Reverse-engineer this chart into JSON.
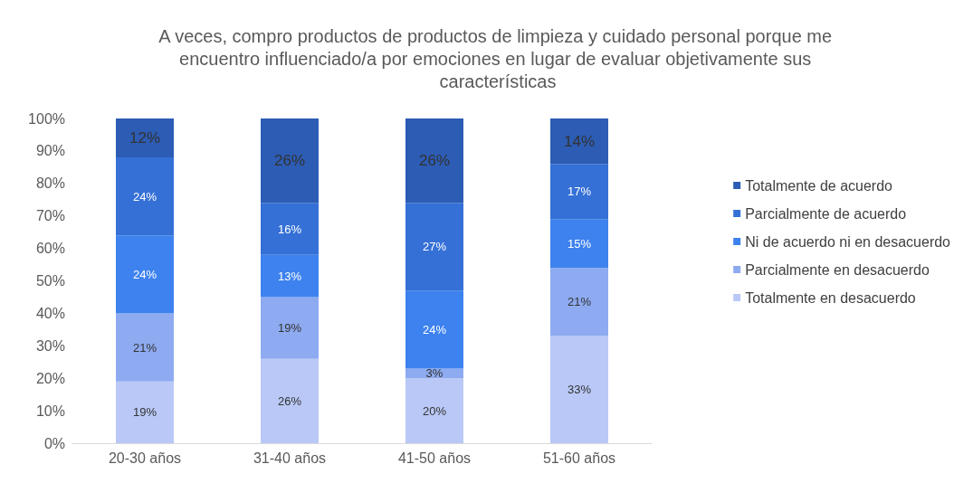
{
  "chart_data": {
    "type": "bar",
    "stacked": true,
    "title": "A veces, compro productos de productos de limpieza y cuidado personal porque me encuentro influenciado/a por emociones en lugar de evaluar objetivamente sus características",
    "categories": [
      "20-30 años",
      "31-40 años",
      "41-50 años",
      "51-60 años"
    ],
    "series": [
      {
        "name": "Totalmente en desacuerdo",
        "color": "#b9c8f6",
        "values": [
          19,
          26,
          20,
          33
        ],
        "value_labels": [
          "19%",
          "26%",
          "20%",
          "33%"
        ]
      },
      {
        "name": "Parcialmente en desacuerdo",
        "color": "#8eaaf0",
        "values": [
          21,
          19,
          3,
          21
        ],
        "value_labels": [
          "21%",
          "19%",
          "3%",
          "21%"
        ]
      },
      {
        "name": "Ni de acuerdo ni en desacuerdo",
        "color": "#3d82ee",
        "values": [
          24,
          13,
          24,
          15
        ],
        "value_labels": [
          "24%",
          "13%",
          "24%",
          "15%"
        ]
      },
      {
        "name": "Parcialmente de acuerdo",
        "color": "#3570d6",
        "values": [
          24,
          16,
          27,
          17
        ],
        "value_labels": [
          "24%",
          "16%",
          "27%",
          "17%"
        ]
      },
      {
        "name": "Totalmente de acuerdo",
        "color": "#2c5cb4",
        "values": [
          12,
          26,
          26,
          14
        ],
        "value_labels": [
          "12%",
          "26%",
          "26%",
          "14%"
        ]
      }
    ],
    "ylim": [
      0,
      100
    ],
    "yticks": [
      {
        "value": 0,
        "label": "0%"
      },
      {
        "value": 10,
        "label": "10%"
      },
      {
        "value": 20,
        "label": "20%"
      },
      {
        "value": 30,
        "label": "30%"
      },
      {
        "value": 40,
        "label": "40%"
      },
      {
        "value": 50,
        "label": "50%"
      },
      {
        "value": 60,
        "label": "60%"
      },
      {
        "value": 70,
        "label": "70%"
      },
      {
        "value": 80,
        "label": "80%"
      },
      {
        "value": 90,
        "label": "90%"
      },
      {
        "value": 100,
        "label": "100%"
      }
    ],
    "legend": "right"
  }
}
